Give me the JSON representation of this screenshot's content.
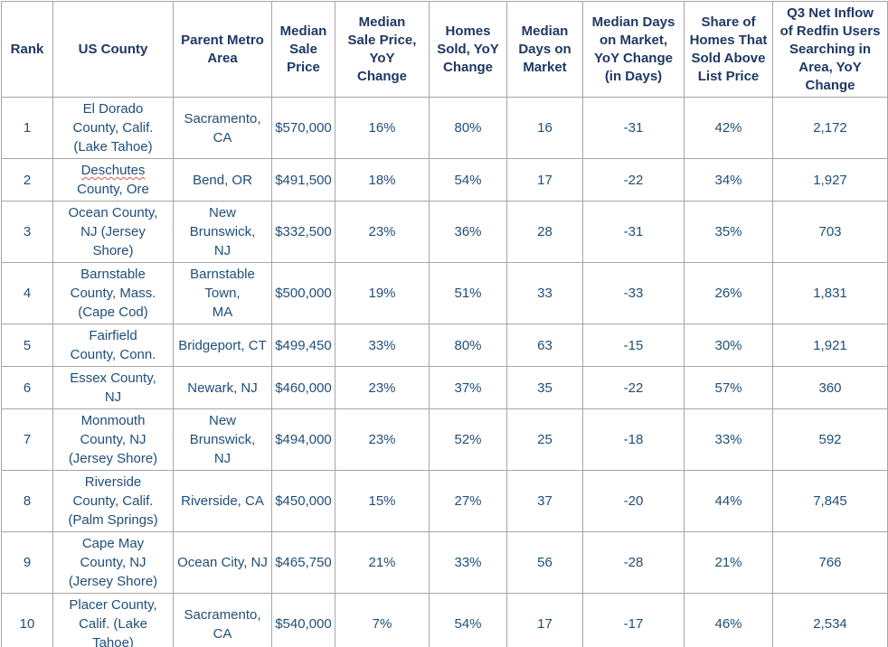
{
  "chart_data": {
    "type": "table",
    "columns": [
      "Rank",
      "US County",
      "Parent Metro\nArea",
      "Median\nSale\nPrice",
      "Median\nSale Price,\nYoY\nChange",
      "Homes\nSold, YoY\nChange",
      "Median\nDays on\nMarket",
      "Median Days\non Market,\nYoY Change\n(in Days)",
      "Share of\nHomes That\nSold Above\nList Price",
      "Q3 Net Inflow\nof Redfin Users\nSearching in\nArea, YoY\nChange"
    ],
    "rows": [
      {
        "rank": "1",
        "county": "El Dorado\nCounty, Calif.\n(Lake Tahoe)",
        "metro": "Sacramento,\nCA",
        "price": "$570,000",
        "price_yoy": "16%",
        "homes_sold_yoy": "80%",
        "days_on_market": "16",
        "days_on_market_yoy": "-31",
        "sold_above_list": "42%",
        "net_inflow": "2,172"
      },
      {
        "rank": "2",
        "county": "Deschutes\nCounty, Ore",
        "metro": "Bend, OR",
        "price": "$491,500",
        "price_yoy": "18%",
        "homes_sold_yoy": "54%",
        "days_on_market": "17",
        "days_on_market_yoy": "-22",
        "sold_above_list": "34%",
        "net_inflow": "1,927",
        "misspelled": "Deschutes"
      },
      {
        "rank": "3",
        "county": "Ocean County,\nNJ (Jersey\nShore)",
        "metro": "New\nBrunswick,\nNJ",
        "price": "$332,500",
        "price_yoy": "23%",
        "homes_sold_yoy": "36%",
        "days_on_market": "28",
        "days_on_market_yoy": "-31",
        "sold_above_list": "35%",
        "net_inflow": "703"
      },
      {
        "rank": "4",
        "county": "Barnstable\nCounty, Mass.\n(Cape Cod)",
        "metro": "Barnstable\nTown,\nMA",
        "price": "$500,000",
        "price_yoy": "19%",
        "homes_sold_yoy": "51%",
        "days_on_market": "33",
        "days_on_market_yoy": "-33",
        "sold_above_list": "26%",
        "net_inflow": "1,831"
      },
      {
        "rank": "5",
        "county": "Fairfield\nCounty, Conn.",
        "metro": "Bridgeport, CT",
        "price": "$499,450",
        "price_yoy": "33%",
        "homes_sold_yoy": "80%",
        "days_on_market": "63",
        "days_on_market_yoy": "-15",
        "sold_above_list": "30%",
        "net_inflow": "1,921"
      },
      {
        "rank": "6",
        "county": "Essex County,\nNJ",
        "metro": "Newark, NJ",
        "price": "$460,000",
        "price_yoy": "23%",
        "homes_sold_yoy": "37%",
        "days_on_market": "35",
        "days_on_market_yoy": "-22",
        "sold_above_list": "57%",
        "net_inflow": "360"
      },
      {
        "rank": "7",
        "county": "Monmouth\nCounty, NJ\n(Jersey Shore)",
        "metro": "New\nBrunswick,\nNJ",
        "price": "$494,000",
        "price_yoy": "23%",
        "homes_sold_yoy": "52%",
        "days_on_market": "25",
        "days_on_market_yoy": "-18",
        "sold_above_list": "33%",
        "net_inflow": "592"
      },
      {
        "rank": "8",
        "county": "Riverside\nCounty, Calif.\n(Palm Springs)",
        "metro": "Riverside, CA",
        "price": "$450,000",
        "price_yoy": "15%",
        "homes_sold_yoy": "27%",
        "days_on_market": "37",
        "days_on_market_yoy": "-20",
        "sold_above_list": "44%",
        "net_inflow": "7,845"
      },
      {
        "rank": "9",
        "county": "Cape May\nCounty, NJ\n(Jersey Shore)",
        "metro": "Ocean City, NJ",
        "price": "$465,750",
        "price_yoy": "21%",
        "homes_sold_yoy": "33%",
        "days_on_market": "56",
        "days_on_market_yoy": "-28",
        "sold_above_list": "21%",
        "net_inflow": "766"
      },
      {
        "rank": "10",
        "county": "Placer County,\nCalif. (Lake\nTahoe)",
        "metro": "Sacramento,\nCA",
        "price": "$540,000",
        "price_yoy": "7%",
        "homes_sold_yoy": "54%",
        "days_on_market": "17",
        "days_on_market_yoy": "-17",
        "sold_above_list": "46%",
        "net_inflow": "2,534"
      }
    ]
  },
  "colors": {
    "header_text": "#1f3864",
    "body_text": "#1f4e79",
    "border": "#a6a6a6",
    "spellcheck_underline": "#e4564a"
  }
}
